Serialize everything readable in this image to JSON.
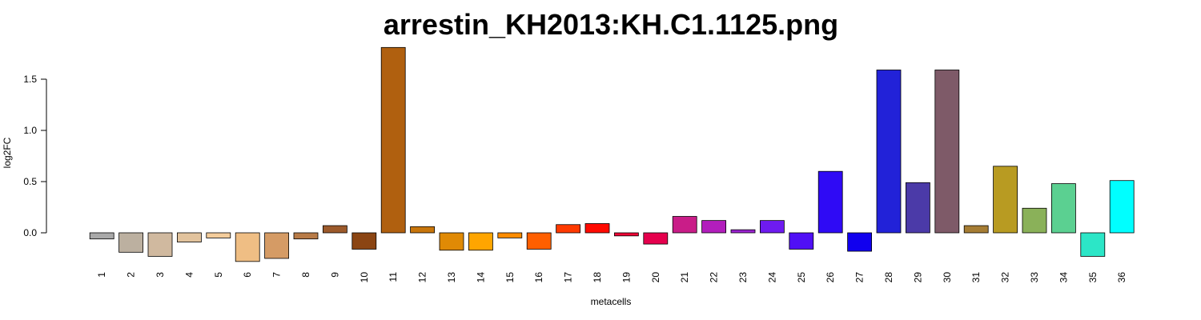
{
  "chart_data": {
    "type": "bar",
    "title": "arrestin_KH2013:KH.C1.1125.png",
    "xlabel": "metacells",
    "ylabel": "log2FC",
    "ylim": [
      -0.3,
      1.8
    ],
    "yticks": [
      "0.0",
      "0.5",
      "1.0",
      "1.5"
    ],
    "categories": [
      "1",
      "2",
      "3",
      "4",
      "5",
      "6",
      "7",
      "8",
      "9",
      "10",
      "11",
      "12",
      "13",
      "14",
      "15",
      "16",
      "17",
      "18",
      "19",
      "20",
      "21",
      "22",
      "23",
      "24",
      "25",
      "26",
      "27",
      "28",
      "29",
      "30",
      "31",
      "32",
      "33",
      "34",
      "35",
      "36"
    ],
    "values": [
      -0.06,
      -0.19,
      -0.23,
      -0.09,
      -0.05,
      -0.28,
      -0.25,
      -0.06,
      0.07,
      -0.16,
      1.81,
      0.06,
      -0.17,
      -0.17,
      -0.05,
      -0.16,
      0.08,
      0.09,
      -0.03,
      -0.11,
      0.16,
      0.12,
      0.03,
      0.12,
      -0.16,
      0.6,
      -0.18,
      1.59,
      0.49,
      1.59,
      0.07,
      0.65,
      0.24,
      0.48,
      -0.23,
      0.51
    ],
    "colors": [
      "#a9a9a9",
      "#bcb0a0",
      "#d0b99f",
      "#e2c39d",
      "#f3cc9b",
      "#efbe84",
      "#d59b65",
      "#b87b47",
      "#9c5a2b",
      "#8b4513",
      "#b0600f",
      "#c8760b",
      "#e08a05",
      "#ffa500",
      "#ff8c00",
      "#ff5f00",
      "#ff3a00",
      "#ff0a00",
      "#f00535",
      "#e5004d",
      "#c91d88",
      "#b21ebc",
      "#9c24d2",
      "#6e1bf0",
      "#5010f5",
      "#2f0af5",
      "#1100ee",
      "#2222d8",
      "#4b3aa8",
      "#7e5a68",
      "#a67d34",
      "#b89b22",
      "#8ab159",
      "#5bd091",
      "#2ce6c7",
      "#00ffff"
    ]
  }
}
